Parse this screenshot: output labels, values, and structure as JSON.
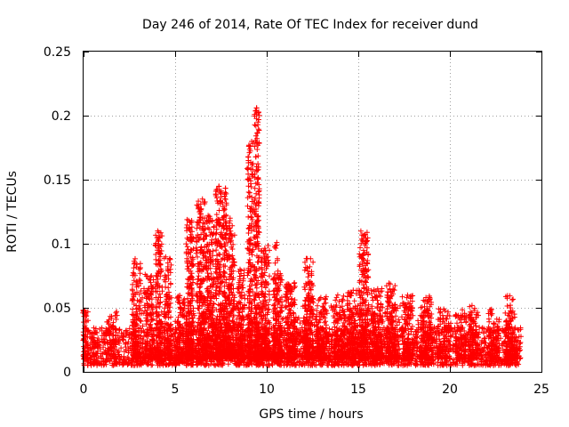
{
  "chart_data": {
    "type": "scatter",
    "title": "Day 246 of 2014, Rate Of TEC Index for receiver dund",
    "xlabel": "GPS time / hours",
    "ylabel": "ROTI / TECUs",
    "xlim": [
      0,
      25
    ],
    "ylim": [
      0,
      0.25
    ],
    "x_ticks": [
      0,
      5,
      10,
      15,
      20,
      25
    ],
    "x_tick_labels": [
      "0",
      "5",
      "10",
      "15",
      "20",
      "25"
    ],
    "y_ticks": [
      0,
      0.05,
      0.1,
      0.15,
      0.2,
      0.25
    ],
    "y_tick_labels": [
      "0",
      "0.05",
      "0.1",
      "0.15",
      "0.2",
      "0.25"
    ],
    "grid": true,
    "marker": "+",
    "series_color": "#ff0000",
    "x_data_range": [
      0,
      23.9
    ],
    "base_band": [
      0.005,
      0.035
    ],
    "peaks": [
      {
        "x": 0.1,
        "y": 0.045
      },
      {
        "x": 1.8,
        "y": 0.047
      },
      {
        "x": 2.8,
        "y": 0.085
      },
      {
        "x": 3.3,
        "y": 0.065
      },
      {
        "x": 3.7,
        "y": 0.075
      },
      {
        "x": 4.05,
        "y": 0.11
      },
      {
        "x": 4.6,
        "y": 0.085
      },
      {
        "x": 5.3,
        "y": 0.05
      },
      {
        "x": 5.8,
        "y": 0.117
      },
      {
        "x": 6.4,
        "y": 0.131
      },
      {
        "x": 6.8,
        "y": 0.122
      },
      {
        "x": 7.5,
        "y": 0.139
      },
      {
        "x": 8.0,
        "y": 0.12
      },
      {
        "x": 9.05,
        "y": 0.176
      },
      {
        "x": 9.45,
        "y": 0.206
      },
      {
        "x": 10.55,
        "y": 0.101
      },
      {
        "x": 12.35,
        "y": 0.082
      },
      {
        "x": 15.35,
        "y": 0.107
      },
      {
        "x": 16.9,
        "y": 0.064
      },
      {
        "x": 18.9,
        "y": 0.058
      },
      {
        "x": 21.2,
        "y": 0.046
      },
      {
        "x": 23.3,
        "y": 0.052
      }
    ],
    "bursts": [
      {
        "center": 0.1,
        "width": 0.3,
        "height": 0.04,
        "count": 60
      },
      {
        "center": 1.5,
        "width": 0.6,
        "height": 0.035,
        "count": 60
      },
      {
        "center": 2.9,
        "width": 0.5,
        "height": 0.08,
        "count": 140
      },
      {
        "center": 3.6,
        "width": 0.5,
        "height": 0.07,
        "count": 120
      },
      {
        "center": 4.1,
        "width": 0.4,
        "height": 0.1,
        "count": 160
      },
      {
        "center": 4.6,
        "width": 0.4,
        "height": 0.08,
        "count": 140
      },
      {
        "center": 5.3,
        "width": 0.4,
        "height": 0.05,
        "count": 80
      },
      {
        "center": 5.8,
        "width": 0.4,
        "height": 0.11,
        "count": 200
      },
      {
        "center": 6.4,
        "width": 0.5,
        "height": 0.125,
        "count": 240
      },
      {
        "center": 6.9,
        "width": 0.5,
        "height": 0.11,
        "count": 220
      },
      {
        "center": 7.5,
        "width": 0.6,
        "height": 0.135,
        "count": 320
      },
      {
        "center": 8.0,
        "width": 0.5,
        "height": 0.11,
        "count": 220
      },
      {
        "center": 8.6,
        "width": 0.4,
        "height": 0.07,
        "count": 140
      },
      {
        "center": 9.1,
        "width": 0.3,
        "height": 0.17,
        "count": 180
      },
      {
        "center": 9.45,
        "width": 0.3,
        "height": 0.2,
        "count": 220
      },
      {
        "center": 9.9,
        "width": 0.5,
        "height": 0.09,
        "count": 200
      },
      {
        "center": 10.6,
        "width": 0.5,
        "height": 0.07,
        "count": 180
      },
      {
        "center": 11.3,
        "width": 0.6,
        "height": 0.06,
        "count": 160
      },
      {
        "center": 12.3,
        "width": 0.5,
        "height": 0.08,
        "count": 180
      },
      {
        "center": 13.0,
        "width": 0.6,
        "height": 0.05,
        "count": 140
      },
      {
        "center": 14.0,
        "width": 0.6,
        "height": 0.05,
        "count": 140
      },
      {
        "center": 14.7,
        "width": 0.6,
        "height": 0.055,
        "count": 150
      },
      {
        "center": 15.3,
        "width": 0.5,
        "height": 0.1,
        "count": 200
      },
      {
        "center": 16.0,
        "width": 0.6,
        "height": 0.055,
        "count": 150
      },
      {
        "center": 16.8,
        "width": 0.5,
        "height": 0.06,
        "count": 140
      },
      {
        "center": 17.7,
        "width": 0.6,
        "height": 0.05,
        "count": 120
      },
      {
        "center": 18.7,
        "width": 0.6,
        "height": 0.05,
        "count": 120
      },
      {
        "center": 19.7,
        "width": 0.7,
        "height": 0.04,
        "count": 110
      },
      {
        "center": 20.6,
        "width": 0.6,
        "height": 0.04,
        "count": 100
      },
      {
        "center": 21.3,
        "width": 0.5,
        "height": 0.045,
        "count": 100
      },
      {
        "center": 22.4,
        "width": 0.6,
        "height": 0.04,
        "count": 100
      },
      {
        "center": 23.3,
        "width": 0.6,
        "height": 0.05,
        "count": 120
      }
    ]
  }
}
